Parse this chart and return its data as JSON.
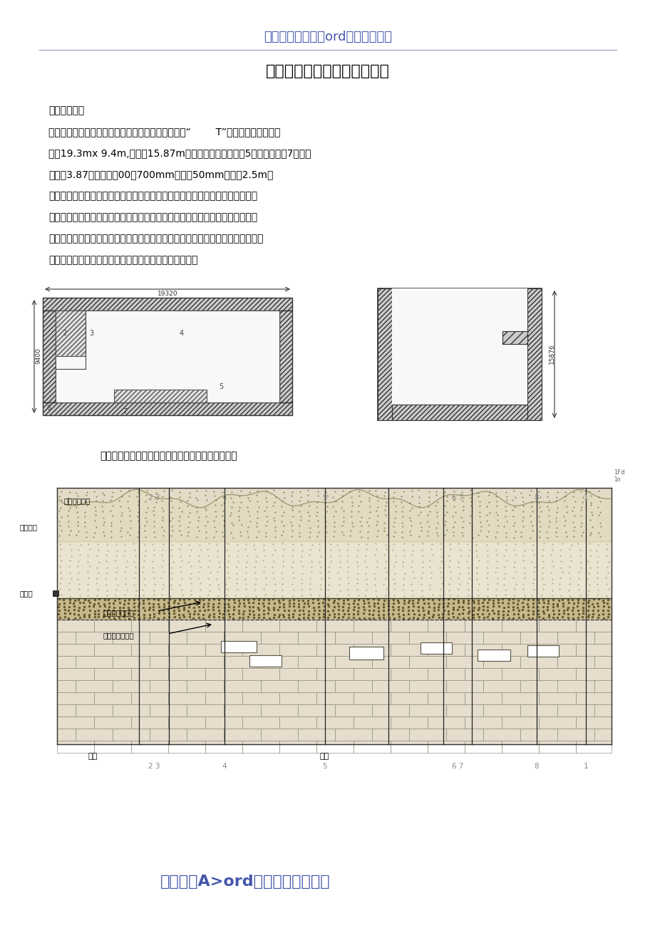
{
  "bg_color": "#ffffff",
  "header_text": "最专业最齐全的林ord文档资料下载",
  "header_color": "#4455aa",
  "title_text": "粗格栊间及进水泵房施工方案",
  "title_color": "#000000",
  "footer_text": "网络平台A>ord文档资料下载提供",
  "footer_color": "#4455aa",
  "body_line1": "一、工程概况",
  "body_line2": "　　粗格栊间及进水泵房为沉井结构施工，其结构为“        T”字形结构，平面尺尸",
  "body_line3": "约为19.3mx 9.4m,高度为15.87m（含刃脚），第一节高5米，第二节高7米，第",
  "body_line4": "三节高3.87米。井壁厖00～700mm底板厖50mm刃脚高2.5m。",
  "body_line5": "　　原设计沉井采用不排水下沉，水下混凝土封底法施工；井体采用三次制作，",
  "body_line6": "三次下沉。经变更改为排水法下沉，沉井周围施工高压旋噴桩形成一道止水帷幕",
  "body_line7": "（详见高压旋噴桩布置图）；井体采用三次制作，一次下沉的施工方法（即先制作",
  "body_line8": "前两节，下沉到位后封底，稳定后再接高第三节井体）。",
  "section_label": "现场地质情况复杂，沉井与地层情况对照展开如下："
}
